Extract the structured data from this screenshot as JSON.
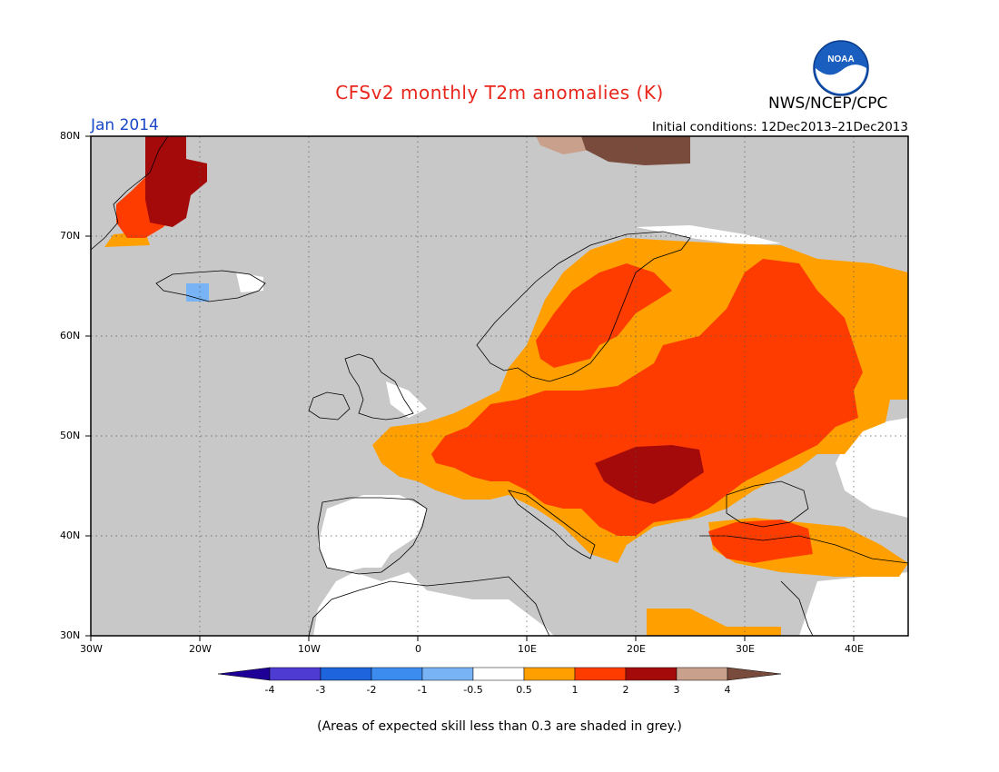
{
  "header": {
    "title": "CFSv2 monthly T2m anomalies (K)",
    "month": "Jan 2014",
    "initial_conditions": "Initial conditions: 12Dec2013–21Dec2013",
    "agency": "NWS/NCEP/CPC",
    "logo_text": "NOAA",
    "title_color": "#e8261b",
    "month_color": "#1a47c8"
  },
  "map": {
    "lat_labels": [
      "80N",
      "70N",
      "60N",
      "50N",
      "40N",
      "30N"
    ],
    "lon_labels": [
      "30W",
      "20W",
      "10W",
      "0",
      "10E",
      "20E",
      "30E",
      "40E"
    ],
    "lat_range": [
      30,
      80
    ],
    "lon_range": [
      -30,
      45
    ],
    "grid": "dotted",
    "low_skill_color": "#c8c8c8"
  },
  "colorbar": {
    "tick_labels": [
      "-4",
      "-3",
      "-2",
      "-1",
      "-0.5",
      "0.5",
      "1",
      "2",
      "3",
      "4"
    ],
    "colors": [
      "#1e0096",
      "#4d3bd2",
      "#1e64dc",
      "#3c8cf0",
      "#78b4f5",
      "#ffffff",
      "#ffa000",
      "#ff3c00",
      "#a50a0a",
      "#c8a08c",
      "#784b3c"
    ]
  },
  "footnote": "(Areas of expected skill less than 0.3 are shaded in grey.)"
}
